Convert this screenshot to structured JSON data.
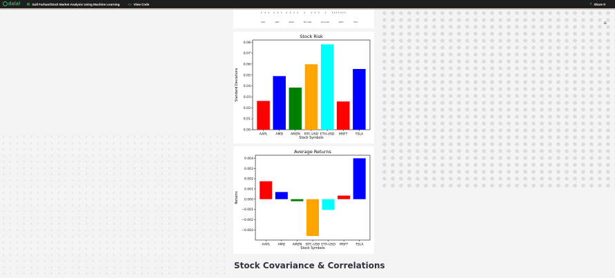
{
  "topbar": {
    "logo": "dalal",
    "breadcrumb": "Gall Farhan/Stock Market Analysis Using Machine Learning",
    "view_code": "View Code",
    "share": "Share It"
  },
  "page": {
    "menu_icon": "≡",
    "section_heading": "Stock Covariance & Correlations",
    "stub_tick_labels": [
      "AAPL",
      "AMD",
      "AMZN",
      "BTC-USD",
      "ETH-USD",
      "MSFT",
      "TSLA"
    ]
  },
  "chart_data": [
    {
      "type": "bar",
      "title": "Stock Risk",
      "xlabel": "Stock Symbols",
      "ylabel": "Standard Deviations",
      "categories": [
        "AAPL",
        "AMD",
        "AMZN",
        "BTC-USD",
        "ETH-USD",
        "MSFT",
        "TSLA"
      ],
      "values": [
        0.0263,
        0.049,
        0.0385,
        0.0598,
        0.078,
        0.0258,
        0.0555
      ],
      "colors": [
        "#ff0000",
        "#0000ff",
        "#008000",
        "#ffa500",
        "#00ffff",
        "#ff0000",
        "#0000ff"
      ],
      "ylim": [
        0,
        0.082
      ],
      "yticks": [
        "0.00",
        "0.01",
        "0.02",
        "0.03",
        "0.04",
        "0.05",
        "0.06",
        "0.07",
        "0.08"
      ],
      "grid": false
    },
    {
      "type": "bar",
      "title": "Average Returns",
      "xlabel": "Stock Symbols",
      "ylabel": "Returns",
      "categories": [
        "AAPL",
        "AMD",
        "AMZN",
        "BTC-USD",
        "ETH-USD",
        "MSFT",
        "TSLA"
      ],
      "values": [
        0.00175,
        0.0007,
        -0.0002,
        -0.0036,
        -0.00105,
        0.00035,
        0.004
      ],
      "colors": [
        "#ff0000",
        "#0000ff",
        "#008000",
        "#ffa500",
        "#00ffff",
        "#ff0000",
        "#0000ff"
      ],
      "ylim": [
        -0.004,
        0.0043
      ],
      "yticks": [
        "−0.003",
        "−0.002",
        "−0.001",
        "0.000",
        "0.001",
        "0.002",
        "0.003",
        "0.004"
      ],
      "grid": false
    }
  ]
}
